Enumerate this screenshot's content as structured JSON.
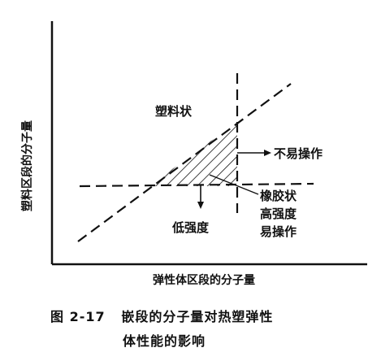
{
  "figure": {
    "y_axis_label": "塑料区段的分子量",
    "x_axis_label": "弹性体区段的分子量",
    "regions": {
      "plastic": "塑料状",
      "difficult": "不易操作",
      "rubber": "橡胶状",
      "high_strength": "高强度",
      "easy": "易操作",
      "low_strength": "低强度"
    },
    "caption_number": "图 2-17",
    "caption_line1": "嵌段的分子量对热塑弹性",
    "caption_line2": "体性能的影响",
    "colors": {
      "ink": "#111111",
      "background": "#ffffff"
    }
  }
}
